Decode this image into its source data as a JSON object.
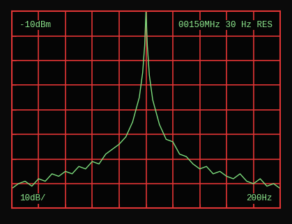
{
  "chart_data": {
    "type": "line",
    "annotations": [
      "-10dBm",
      "00150MHz 30 Hz RES",
      "10dB/",
      "200Hz"
    ],
    "x": [
      -1000,
      -950,
      -900,
      -850,
      -800,
      -750,
      -700,
      -650,
      -600,
      -550,
      -500,
      -450,
      -400,
      -350,
      -300,
      -250,
      -200,
      -150,
      -100,
      -50,
      -25,
      -10,
      0,
      10,
      25,
      50,
      100,
      150,
      200,
      250,
      300,
      350,
      400,
      450,
      500,
      550,
      600,
      650,
      700,
      750,
      800,
      850,
      900,
      950,
      1000
    ],
    "values": [
      -82,
      -80,
      -79,
      -81,
      -78,
      -79,
      -76,
      -77,
      -75,
      -76,
      -73,
      -74,
      -71,
      -72,
      -68,
      -66,
      -64,
      -61,
      -55,
      -45,
      -35,
      -24,
      -10,
      -24,
      -36,
      -46,
      -56,
      -62,
      -63,
      -68,
      -69,
      -72,
      -74,
      -73,
      -76,
      -75,
      -77,
      -78,
      -76,
      -79,
      -80,
      -78,
      -81,
      -80,
      -82
    ],
    "color": "#7ee07e",
    "xlim": [
      -1000,
      1000
    ],
    "xticks": [
      -1000,
      -800,
      -600,
      -400,
      -200,
      0,
      200,
      400,
      600,
      800,
      1000
    ],
    "ylim": [
      -90,
      -10
    ],
    "yticks": [
      -90,
      -80,
      -70,
      -60,
      -50,
      -40,
      -30,
      -20,
      -10
    ],
    "grid": true,
    "tick_labels": false
  }
}
